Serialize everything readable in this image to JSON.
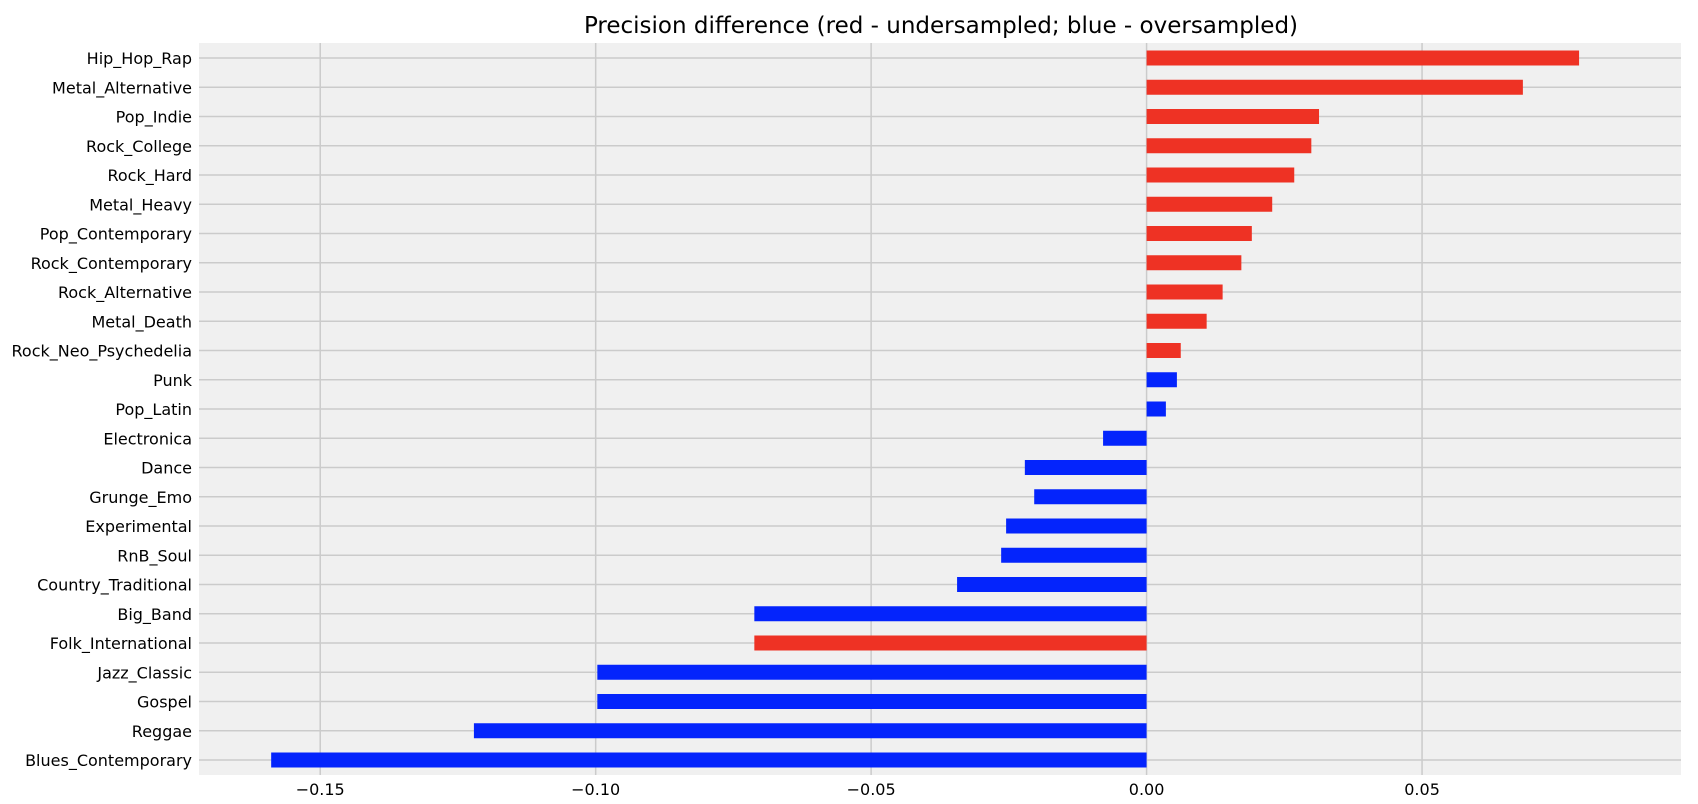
{
  "chart_data": {
    "type": "bar",
    "orientation": "horizontal",
    "title": "Precision difference (red - undersampled; blue - oversampled)",
    "xlabel": "",
    "ylabel": "",
    "xlim": [
      -0.172,
      0.097
    ],
    "grid": true,
    "legend": "none",
    "xticks": [
      -0.15,
      -0.1,
      -0.05,
      0.0,
      0.05
    ],
    "xtick_labels": [
      "−0.15",
      "−0.10",
      "−0.05",
      "0.00",
      "0.05"
    ],
    "categories": [
      "Hip_Hop_Rap",
      "Metal_Alternative",
      "Pop_Indie",
      "Rock_College",
      "Rock_Hard",
      "Metal_Heavy",
      "Pop_Contemporary",
      "Rock_Contemporary",
      "Rock_Alternative",
      "Metal_Death",
      "Rock_Neo_Psychedelia",
      "Punk",
      "Pop_Latin",
      "Electronica",
      "Dance",
      "Grunge_Emo",
      "Experimental",
      "RnB_Soul",
      "Country_Traditional",
      "Big_Band",
      "Folk_International",
      "Jazz_Classic",
      "Gospel",
      "Reggae",
      "Blues_Contemporary"
    ],
    "values": [
      0.0785,
      0.0683,
      0.0313,
      0.0299,
      0.0268,
      0.0228,
      0.0191,
      0.0172,
      0.0138,
      0.0109,
      0.0062,
      0.0055,
      0.0035,
      -0.0079,
      -0.0221,
      -0.0204,
      -0.0255,
      -0.0264,
      -0.0344,
      -0.0712,
      -0.0712,
      -0.0997,
      -0.0997,
      -0.1221,
      -0.1589
    ],
    "sampling": [
      "undersampled",
      "undersampled",
      "undersampled",
      "undersampled",
      "undersampled",
      "undersampled",
      "undersampled",
      "undersampled",
      "undersampled",
      "undersampled",
      "undersampled",
      "oversampled",
      "oversampled",
      "oversampled",
      "oversampled",
      "oversampled",
      "oversampled",
      "oversampled",
      "oversampled",
      "oversampled",
      "undersampled",
      "oversampled",
      "oversampled",
      "oversampled",
      "oversampled"
    ],
    "colors": {
      "undersampled": "#ee3224",
      "oversampled": "#0424fc",
      "plot_background": "#f0f0f0",
      "grid": "#cbcbcb",
      "text": "#000000"
    }
  }
}
